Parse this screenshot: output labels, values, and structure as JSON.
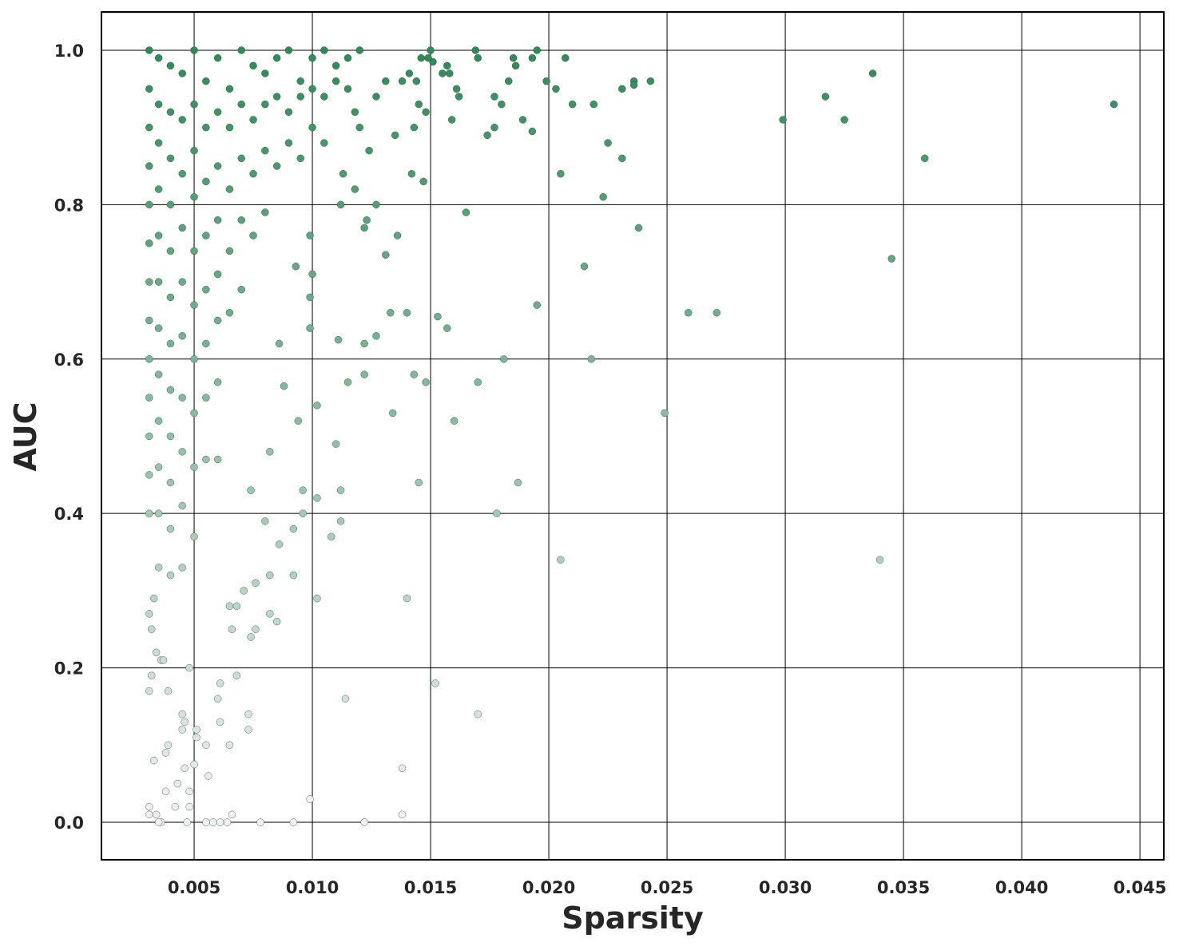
{
  "chart_data": {
    "type": "scatter",
    "xlabel": "Sparsity",
    "ylabel": "AUC",
    "xlim": [
      0.00108,
      0.04601
    ],
    "ylim": [
      -0.0486,
      1.0496
    ],
    "xticks": [
      0.005,
      {
        "value": 0.01,
        "label": "0.010"
      },
      0.015,
      {
        "value": 0.02,
        "label": "0.020"
      },
      0.025,
      {
        "value": 0.03,
        "label": "0.030"
      },
      0.035,
      {
        "value": 0.04,
        "label": "0.040"
      },
      0.045
    ],
    "yticks": [
      {
        "value": 0,
        "label": "0.0"
      },
      0.2,
      0.4,
      0.6,
      0.8,
      {
        "value": 1,
        "label": "1.0"
      }
    ],
    "grid": true,
    "colors": [
      "#eef4f0",
      "#2e8b57"
    ],
    "edgecolor": "#3a3a3a",
    "x": [
      0.0439,
      0.0359,
      0.0345,
      0.034,
      0.0337,
      0.0325,
      0.0317,
      0.0299,
      0.0271,
      0.0259,
      0.0249,
      0.0243,
      0.0238,
      0.0236,
      0.0236,
      0.0231,
      0.0231,
      0.0225,
      0.0223,
      0.0219,
      0.0218,
      0.0215,
      0.021,
      0.0207,
      0.0205,
      0.0205,
      0.0203,
      0.0199,
      0.0195,
      0.0195,
      0.0193,
      0.0193,
      0.0189,
      0.0187,
      0.0186,
      0.0185,
      0.0183,
      0.0181,
      0.018,
      0.0178,
      0.0177,
      0.0177,
      0.0174,
      0.017,
      0.017,
      0.017,
      0.0169,
      0.0165,
      0.0162,
      0.0161,
      0.016,
      0.0159,
      0.0158,
      0.0157,
      0.0157,
      0.0155,
      0.0153,
      0.0152,
      0.0151,
      0.015,
      0.0149,
      0.0148,
      0.0148,
      0.0147,
      0.0146,
      0.0145,
      0.0145,
      0.0144,
      0.0143,
      0.0143,
      0.0142,
      0.0141,
      0.014,
      0.014,
      0.0138,
      0.0138,
      0.0138,
      0.0136,
      0.0135,
      0.0134,
      0.0133,
      0.0131,
      0.0131,
      0.0127,
      0.0127,
      0.0127,
      0.0124,
      0.0123,
      0.0122,
      0.0122,
      0.0122,
      0.0122,
      0.012,
      0.0118,
      0.0118,
      0.0115,
      0.0114,
      0.0113,
      0.0112,
      0.0112,
      0.0112,
      0.0111,
      0.011,
      0.0108,
      0.0102,
      0.0102,
      0.0102,
      0.0099,
      0.0099,
      0.0099,
      0.0099,
      0.01,
      0.0094,
      0.0092,
      0.0092,
      0.0092,
      0.0096,
      0.0096,
      0.0093,
      0.0088,
      0.0086,
      0.0086,
      0.0085,
      0.0082,
      0.0082,
      0.0082,
      0.008,
      0.0078,
      0.0076,
      0.0076,
      0.0074,
      0.0074,
      0.0073,
      0.0073,
      0.0071,
      0.0068,
      0.0068,
      0.0065,
      0.0065,
      0.0066,
      0.0066,
      0.0064,
      0.0061,
      0.0061,
      0.0061,
      0.006,
      0.0058,
      0.0056,
      0.0055,
      0.0055,
      0.0051,
      0.0051,
      0.005,
      0.0048,
      0.0048,
      0.0048,
      0.0047,
      0.0046,
      0.0046,
      0.0045,
      0.0045,
      0.0043,
      0.0042,
      0.0039,
      0.0038,
      0.0038,
      0.0036,
      0.0035,
      0.0034,
      0.0031,
      0.0031,
      0.0033,
      0.0031,
      0.0039,
      0.0032,
      0.0036,
      0.0037,
      0.0034,
      0.0031,
      0.0032,
      0.0033,
      0.0031,
      0.0035,
      0.004,
      0.0045,
      0.005,
      0.0055,
      0.006,
      0.0065,
      0.007,
      0.0075,
      0.008,
      0.0085,
      0.009,
      0.0095,
      0.01,
      0.0105,
      0.011,
      0.0115,
      0.012,
      0.0031,
      0.0031,
      0.0031,
      0.0031,
      0.0031,
      0.0031,
      0.0031,
      0.0031,
      0.0031,
      0.0031,
      0.0031,
      0.0031,
      0.0035,
      0.0035,
      0.0035,
      0.0035,
      0.0035,
      0.0035,
      0.0035,
      0.0035,
      0.0035,
      0.0035,
      0.0035,
      0.004,
      0.004,
      0.004,
      0.004,
      0.004,
      0.004,
      0.004,
      0.004,
      0.004,
      0.004,
      0.004,
      0.0045,
      0.0045,
      0.0045,
      0.0045,
      0.0045,
      0.0045,
      0.0045,
      0.0045,
      0.0045,
      0.005,
      0.005,
      0.005,
      0.005,
      0.005,
      0.005,
      0.005,
      0.005,
      0.005,
      0.0055,
      0.0055,
      0.0055,
      0.0055,
      0.0055,
      0.0055,
      0.0055,
      0.006,
      0.006,
      0.006,
      0.006,
      0.006,
      0.006,
      0.006,
      0.0065,
      0.0065,
      0.0065,
      0.0065,
      0.007,
      0.007,
      0.007,
      0.007,
      0.0075,
      0.0075,
      0.0075,
      0.008,
      0.008,
      0.008,
      0.0085,
      0.0085,
      0.009,
      0.009,
      0.0095,
      0.0095,
      0.01,
      0.01,
      0.0105,
      0.0105,
      0.011,
      0.0115
    ],
    "values": [
      0.93,
      0.86,
      0.73,
      0.34,
      0.97,
      0.91,
      0.94,
      0.91,
      0.66,
      0.66,
      0.53,
      0.96,
      0.77,
      0.96,
      0.955,
      0.86,
      0.95,
      0.88,
      0.81,
      0.93,
      0.6,
      0.72,
      0.93,
      0.99,
      0.84,
      0.34,
      0.95,
      0.96,
      1.0,
      0.67,
      0.99,
      0.895,
      0.91,
      0.44,
      0.98,
      0.99,
      0.96,
      0.6,
      0.93,
      0.4,
      0.94,
      0.9,
      0.89,
      0.99,
      0.57,
      0.14,
      1.0,
      0.79,
      0.94,
      0.95,
      0.52,
      0.91,
      0.97,
      0.98,
      0.64,
      0.97,
      0.655,
      0.18,
      0.985,
      1.0,
      0.99,
      0.92,
      0.57,
      0.83,
      0.99,
      0.93,
      0.44,
      0.96,
      0.9,
      0.58,
      0.84,
      0.97,
      0.66,
      0.29,
      0.96,
      0.07,
      0.01,
      0.76,
      0.89,
      0.53,
      0.66,
      0.96,
      0.735,
      0.94,
      0.8,
      0.63,
      0.87,
      0.78,
      0.77,
      0.62,
      0.58,
      0.0,
      0.9,
      0.92,
      0.82,
      0.57,
      0.16,
      0.84,
      0.8,
      0.43,
      0.39,
      0.625,
      0.49,
      0.37,
      0.54,
      0.42,
      0.29,
      0.03,
      0.64,
      0.68,
      0.76,
      0.71,
      0.52,
      0.38,
      0.32,
      0.0,
      0.43,
      0.4,
      0.72,
      0.565,
      0.62,
      0.36,
      0.26,
      0.48,
      0.32,
      0.27,
      0.39,
      0.0,
      0.31,
      0.25,
      0.24,
      0.43,
      0.14,
      0.12,
      0.3,
      0.19,
      0.28,
      0.1,
      0.28,
      0.25,
      0.01,
      0.0,
      0.0,
      0.13,
      0.18,
      0.16,
      0.0,
      0.06,
      0.1,
      0.0,
      0.11,
      0.12,
      0.075,
      0.2,
      0.04,
      0.02,
      0.0,
      0.07,
      0.13,
      0.12,
      0.14,
      0.05,
      0.02,
      0.1,
      0.09,
      0.04,
      0.0,
      0.0,
      0.01,
      0.02,
      0.01,
      0.08,
      0.17,
      0.17,
      0.19,
      0.21,
      0.21,
      0.22,
      0.27,
      0.25,
      0.29,
      1.0,
      0.99,
      0.98,
      0.97,
      1.0,
      0.96,
      0.99,
      0.95,
      1.0,
      0.98,
      0.97,
      0.99,
      1.0,
      0.96,
      0.99,
      1.0,
      0.98,
      0.99,
      1.0,
      0.95,
      0.9,
      0.85,
      0.8,
      0.75,
      0.7,
      0.65,
      0.6,
      0.55,
      0.5,
      0.45,
      0.4,
      0.93,
      0.88,
      0.82,
      0.76,
      0.7,
      0.64,
      0.58,
      0.52,
      0.46,
      0.4,
      0.33,
      0.92,
      0.86,
      0.8,
      0.74,
      0.68,
      0.62,
      0.56,
      0.5,
      0.44,
      0.38,
      0.32,
      0.91,
      0.84,
      0.77,
      0.7,
      0.63,
      0.55,
      0.48,
      0.41,
      0.33,
      0.93,
      0.87,
      0.81,
      0.74,
      0.67,
      0.6,
      0.53,
      0.46,
      0.37,
      0.9,
      0.83,
      0.76,
      0.69,
      0.62,
      0.55,
      0.47,
      0.92,
      0.85,
      0.78,
      0.71,
      0.65,
      0.57,
      0.47,
      0.9,
      0.82,
      0.74,
      0.66,
      0.93,
      0.86,
      0.78,
      0.69,
      0.91,
      0.84,
      0.76,
      0.93,
      0.87,
      0.79,
      0.94,
      0.85,
      0.92,
      0.88,
      0.94,
      0.86,
      0.95,
      0.9,
      0.94,
      0.88,
      0.96,
      0.95
    ]
  }
}
